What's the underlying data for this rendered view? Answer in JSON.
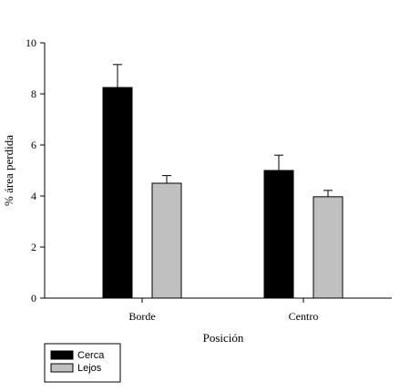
{
  "chart_data": {
    "type": "bar",
    "categories": [
      "Borde",
      "Centro"
    ],
    "series": [
      {
        "name": "Cerca",
        "values": [
          8.25,
          5.0
        ],
        "errors": [
          0.9,
          0.6
        ],
        "color": "#000000"
      },
      {
        "name": "Lejos",
        "values": [
          4.5,
          3.97
        ],
        "errors": [
          0.3,
          0.25
        ],
        "color": "#c0c0c0"
      }
    ],
    "xlabel": "Posición",
    "ylabel": "% área perdida",
    "ylim": [
      0,
      10
    ],
    "yticks": [
      "0",
      "2",
      "4",
      "6",
      "8",
      "10"
    ],
    "error_bars": "upper",
    "grid": false,
    "legend_position": "bottom-left"
  }
}
